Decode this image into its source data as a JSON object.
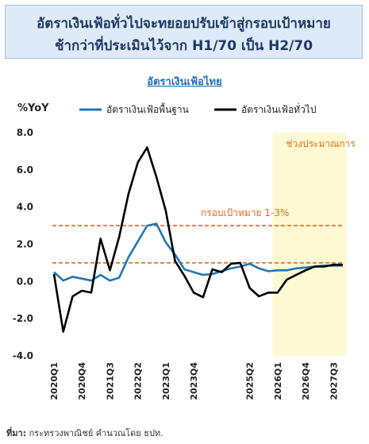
{
  "header": {
    "title_line1": "อัตราเงินเฟ้อทั่วไปจะทยอยปรับเข้าสู่กรอบเป้าหมาย",
    "title_line2": "ช้ากว่าที่ประเมินไว้จาก H1/70 เป็น H2/70"
  },
  "footer": {
    "source_label": "ที่มา:",
    "source_text": " กระทรวงพาณิชย์ คำนวณโดย ธปท."
  },
  "chart_data": {
    "type": "line",
    "title": "อัตราเงินเฟ้อไทย",
    "ylabel": "%YoY",
    "ylim": [
      -4.0,
      8.0
    ],
    "yticks": [
      -4.0,
      -2.0,
      0.0,
      2.0,
      4.0,
      6.0,
      8.0
    ],
    "ytick_labels": [
      "-4.0",
      "-2.0",
      "0.0",
      "2.0",
      "4.0",
      "6.0",
      "8.0"
    ],
    "categories": [
      "2020Q1",
      "2020Q2",
      "2020Q3",
      "2020Q4",
      "2021Q1",
      "2021Q2",
      "2021Q3",
      "2021Q4",
      "2022Q1",
      "2022Q2",
      "2022Q3",
      "2022Q4",
      "2023Q1",
      "2023Q2",
      "2023Q3",
      "2023Q4",
      "2024Q1",
      "2024Q2",
      "2024Q3",
      "2024Q4",
      "2025Q1",
      "2025Q2",
      "2025Q3",
      "2025Q4",
      "2026Q1",
      "2026Q2",
      "2026Q3",
      "2026Q4",
      "2027Q1",
      "2027Q2",
      "2027Q3",
      "2027Q4"
    ],
    "xtick_labels": [
      "2020Q1",
      "2020Q4",
      "2021Q3",
      "2022Q2",
      "2023Q1",
      "2023Q4",
      "2025Q2",
      "2026Q1",
      "2026Q4",
      "2027Q3"
    ],
    "xtick_categories": [
      "2020Q1",
      "2020Q4",
      "2021Q3",
      "2022Q2",
      "2023Q1",
      "2023Q4",
      "2025Q2",
      "2026Q1",
      "2026Q4",
      "2027Q3"
    ],
    "series": [
      {
        "name": "อัตราเงินเฟ้อพื้นฐาน",
        "color": "#1f78b4",
        "values": [
          0.5,
          0.05,
          0.25,
          0.15,
          0.05,
          0.35,
          0.05,
          0.2,
          1.3,
          2.15,
          3.0,
          3.1,
          2.1,
          1.45,
          0.65,
          0.5,
          0.35,
          0.4,
          0.55,
          0.7,
          0.8,
          0.95,
          0.7,
          0.55,
          0.6,
          0.6,
          0.7,
          0.75,
          0.8,
          0.85,
          0.85,
          0.85
        ]
      },
      {
        "name": "อัตราเงินเฟ้อทั่วไป",
        "color": "#000000",
        "values": [
          0.4,
          -2.7,
          -0.8,
          -0.5,
          -0.6,
          2.3,
          0.6,
          2.4,
          4.7,
          6.4,
          7.2,
          5.6,
          3.8,
          1.1,
          0.3,
          -0.6,
          -0.85,
          0.65,
          0.5,
          0.95,
          1.0,
          -0.35,
          -0.8,
          -0.6,
          -0.6,
          0.1,
          0.35,
          0.6,
          0.8,
          0.8,
          0.9,
          0.9
        ]
      }
    ],
    "target_band": {
      "label": "กรอบเป้าหมาย 1-3%",
      "lower": 1.0,
      "upper": 3.0,
      "color": "#e06a1b"
    },
    "forecast_region": {
      "label": "ช่วงประมาณการ",
      "start": "2026Q1",
      "end": "2027Q4",
      "color": "#fdf9d3"
    },
    "grid": false,
    "legend_position": "top"
  }
}
